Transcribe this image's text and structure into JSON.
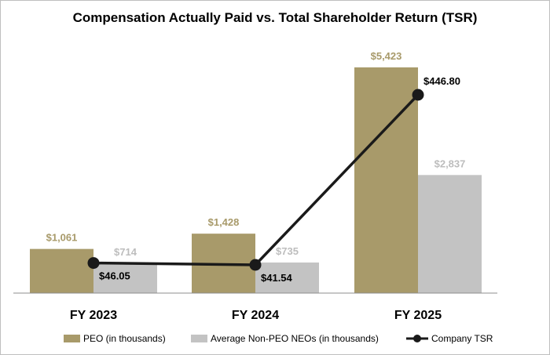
{
  "chart_data": {
    "type": "bar",
    "title": "Compensation Actually Paid vs. Total Shareholder Return (TSR)",
    "categories": [
      "FY 2023",
      "FY 2024",
      "FY 2025"
    ],
    "series": [
      {
        "name": "PEO (in thousands)",
        "values": [
          1061,
          1428,
          5423
        ],
        "labels": [
          "$1,061",
          "$1,428",
          "$5,423"
        ],
        "color": "#a89a6a",
        "label_color": "#a89a6a"
      },
      {
        "name": "Average Non-PEO NEOs (in thousands)",
        "values": [
          714,
          735,
          2837
        ],
        "labels": [
          "$714",
          "$735",
          "$2,837"
        ],
        "color": "#c3c3c3",
        "label_color": "#bdbdbd"
      }
    ],
    "line_series": {
      "name": "Company TSR",
      "values": [
        46.05,
        41.54,
        446.8
      ],
      "labels": [
        "$46.05",
        "$41.54",
        "$446.80"
      ],
      "color": "#1a1a1a"
    },
    "ylim": [
      0,
      5423
    ],
    "tsr_lim": [
      0,
      446.8
    ],
    "legend_position": "bottom",
    "grid": false
  }
}
